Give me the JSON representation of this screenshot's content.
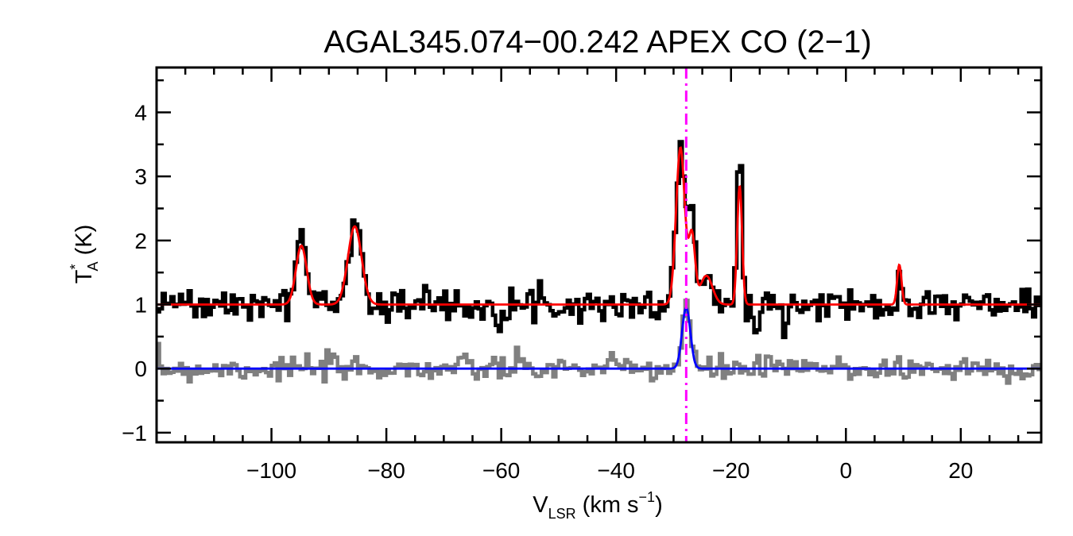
{
  "chart_data": {
    "type": "line",
    "title": "AGAL345.074−00.242  APEX CO (2−1)",
    "xlabel": {
      "main": "V",
      "sub": "LSR",
      "unit_open": " (km s",
      "unit_sup": "−1",
      "unit_close": ")"
    },
    "ylabel": {
      "main": "T",
      "sup": "*",
      "sub": "A",
      "unit": " (K)"
    },
    "xlim": [
      -120,
      34
    ],
    "ylim": [
      -1.15,
      4.7
    ],
    "x_ticks": [
      -100,
      -80,
      -60,
      -40,
      -20,
      0,
      20
    ],
    "x_tick_labels": [
      "−100",
      "−80",
      "−60",
      "−40",
      "−20",
      "0",
      "20"
    ],
    "y_ticks": [
      -1,
      0,
      1,
      2,
      3,
      4
    ],
    "y_tick_labels": [
      "−1",
      "0",
      "1",
      "2",
      "3",
      "4"
    ],
    "grid": false,
    "legend": "none",
    "noise": {
      "observed_rms": 0.12,
      "residual_rms": 0.1
    },
    "series": [
      {
        "role": "observed-spectrum",
        "style": "histogram",
        "color": "#000000",
        "offset": 1.0,
        "features": [
          {
            "v": -94.8,
            "peak": 1.1,
            "fwhm": 2.2
          },
          {
            "v": -85.5,
            "peak": 1.3,
            "fwhm": 2.8
          },
          {
            "v": -28.8,
            "peak": 2.55,
            "fwhm": 1.8
          },
          {
            "v": -26.8,
            "peak": 1.4,
            "fwhm": 1.3
          },
          {
            "v": -24.3,
            "peak": 0.45,
            "fwhm": 2.5
          },
          {
            "v": -18.5,
            "peak": 2.4,
            "fwhm": 1.0
          },
          {
            "v": -15.5,
            "peak": -0.45,
            "fwhm": 1.5
          },
          {
            "v": -33.5,
            "peak": -0.3,
            "fwhm": 0.6
          },
          {
            "v": 9.3,
            "peak": 0.65,
            "fwhm": 0.9
          }
        ]
      },
      {
        "role": "model-fit",
        "style": "line",
        "color": "#ff0000",
        "offset": 1.0,
        "components": [
          {
            "v": -94.8,
            "peak": 0.92,
            "fwhm": 2.2
          },
          {
            "v": -85.5,
            "peak": 1.22,
            "fwhm": 2.8
          },
          {
            "v": -28.8,
            "peak": 2.45,
            "fwhm": 1.8
          },
          {
            "v": -26.8,
            "peak": 1.05,
            "fwhm": 1.3
          },
          {
            "v": -24.3,
            "peak": 0.45,
            "fwhm": 2.5
          },
          {
            "v": -18.5,
            "peak": 1.85,
            "fwhm": 1.0
          },
          {
            "v": 9.3,
            "peak": 0.62,
            "fwhm": 0.9
          }
        ]
      },
      {
        "role": "residual-spectrum",
        "style": "histogram",
        "color": "#808080",
        "offset": 0.0,
        "features": [
          {
            "v": -27.8,
            "peak": 1.0,
            "fwhm": 1.6
          }
        ]
      },
      {
        "role": "component-fit",
        "style": "line",
        "color": "#0000ff",
        "offset": 0.0,
        "components": [
          {
            "v": -27.8,
            "peak": 0.95,
            "fwhm": 1.7
          }
        ]
      }
    ],
    "marker": {
      "v": -27.8,
      "color": "#ff00ff",
      "style": "dash-dot"
    }
  }
}
